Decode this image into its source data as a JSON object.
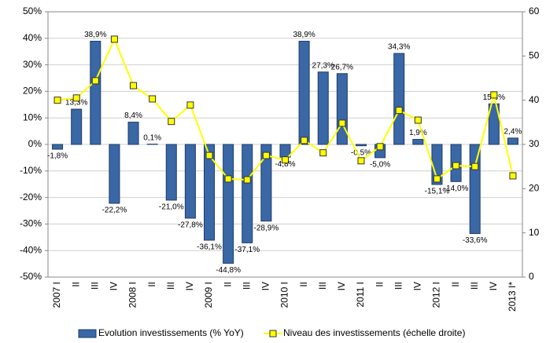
{
  "chart_data": {
    "type": "bar_line",
    "categories": [
      "2007 I",
      "II",
      "III",
      "IV",
      "2008 I",
      "II",
      "III",
      "IV",
      "2009 I",
      "II",
      "III",
      "IV",
      "2010 I",
      "II",
      "III",
      "IV",
      "2011 I",
      "II",
      "III",
      "IV",
      "2012 I",
      "II",
      "III",
      "IV",
      "2013 I*"
    ],
    "series": [
      {
        "name": "Evolution investissements (% YoY)",
        "type": "bar",
        "color": "#3a67a6",
        "values": [
          -1.8,
          13.3,
          38.9,
          -22.2,
          8.4,
          0.1,
          -21.0,
          -27.8,
          -36.1,
          -44.8,
          -37.1,
          -28.9,
          -4.8,
          38.9,
          27.3,
          26.7,
          -0.5,
          -5.0,
          34.3,
          1.9,
          -15.1,
          -14.0,
          -33.6,
          15.3,
          2.4
        ],
        "value_labels": [
          "-1,8%",
          "13,3%",
          "38,9%",
          "-22,2%",
          "8,4%",
          "0,1%",
          "-21,0%",
          "-27,8%",
          "-36,1%",
          "-44,8%",
          "-37,1%",
          "-28,9%",
          "-4,8%",
          "38,9%",
          "27,3%",
          "26,7%",
          "-0,5%",
          "-5,0%",
          "34,3%",
          "1,9%",
          "-15,1%",
          "-14,0%",
          "-33,6%",
          "15,3%",
          "2,4%"
        ]
      },
      {
        "name": "Niveau des investissements (échelle droite)",
        "type": "line",
        "axis": "y2",
        "color": "#ffff00",
        "values": [
          40.0,
          40.5,
          44.4,
          53.8,
          43.3,
          40.3,
          35.2,
          38.9,
          27.5,
          22.2,
          22.0,
          27.5,
          26.5,
          30.9,
          28.1,
          34.8,
          26.3,
          29.5,
          37.7,
          35.5,
          22.2,
          25.2,
          25.0,
          41.2,
          22.9
        ]
      }
    ],
    "ylim": [
      -50,
      50
    ],
    "yticks": [
      {
        "value": -50,
        "label": "-50%"
      },
      {
        "value": -40,
        "label": "-40%"
      },
      {
        "value": -30,
        "label": "-30%"
      },
      {
        "value": -20,
        "label": "-20%"
      },
      {
        "value": -10,
        "label": "-10%"
      },
      {
        "value": 0,
        "label": "0%"
      },
      {
        "value": 10,
        "label": "10%"
      },
      {
        "value": 20,
        "label": "20%"
      },
      {
        "value": 30,
        "label": "30%"
      },
      {
        "value": 40,
        "label": "40%"
      },
      {
        "value": 50,
        "label": "50%"
      }
    ],
    "y2lim": [
      0,
      60
    ],
    "y2ticks": [
      0,
      10,
      20,
      30,
      40,
      50,
      60
    ],
    "grid": true,
    "legend": "bottom"
  }
}
